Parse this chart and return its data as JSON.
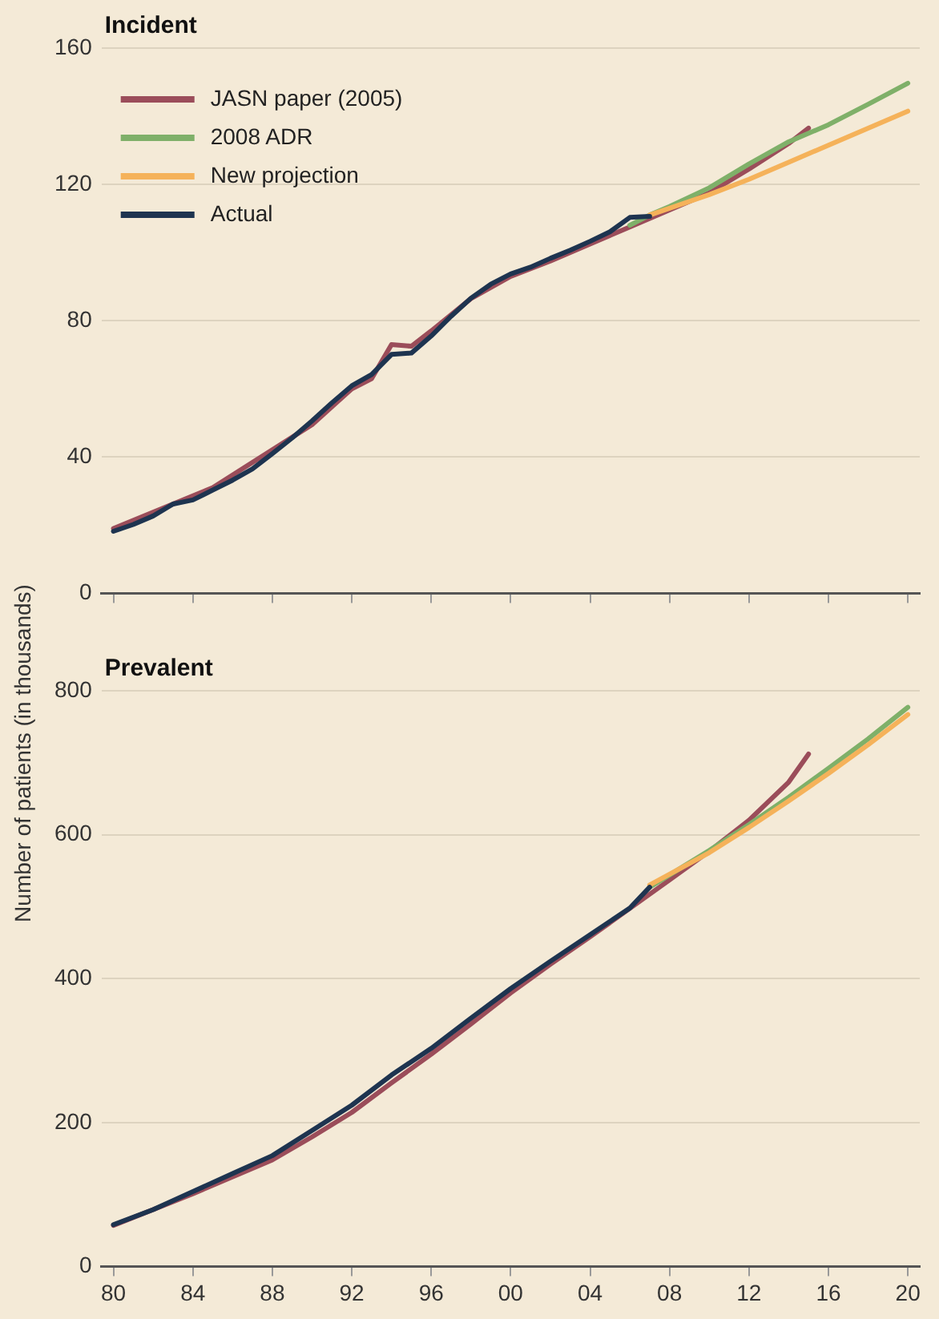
{
  "chart_data": [
    {
      "type": "line",
      "title": "Incident",
      "ylabel": "Number of patients (in thousands)",
      "xlim": [
        1979.4,
        2020.6
      ],
      "xticks": [
        {
          "value": 1980,
          "label": null
        },
        {
          "value": 1984,
          "label": null
        },
        {
          "value": 1988,
          "label": null
        },
        {
          "value": 1992,
          "label": null
        },
        {
          "value": 1996,
          "label": null
        },
        {
          "value": 2000,
          "label": null
        },
        {
          "value": 2004,
          "label": null
        },
        {
          "value": 2008,
          "label": null
        },
        {
          "value": 2012,
          "label": null
        },
        {
          "value": 2016,
          "label": null
        },
        {
          "value": 2020,
          "label": null
        }
      ],
      "ylim": [
        0,
        160
      ],
      "yticks": [
        0,
        40,
        80,
        120,
        160
      ],
      "grid": "y",
      "legend": "top left",
      "tick_labels": "y",
      "series": [
        {
          "name": "JASN paper (2005)",
          "color": "#9b4d5a",
          "x": [
            1980,
            1985,
            1990,
            1992,
            1993,
            1994,
            1995,
            1996,
            1998,
            2000,
            2002,
            2004,
            2006,
            2008,
            2010,
            2012,
            2014,
            2015
          ],
          "values": [
            19,
            31,
            49.5,
            60,
            63,
            73,
            72.5,
            77,
            86.5,
            93,
            97.5,
            102.5,
            107.5,
            112.5,
            117.5,
            124.5,
            132,
            136.5
          ]
        },
        {
          "name": "2008 ADR",
          "color": "#7fb069",
          "x": [
            2006,
            2007,
            2008,
            2010,
            2012,
            2014,
            2016,
            2018,
            2020
          ],
          "values": [
            108,
            111,
            113.5,
            119,
            126,
            132.5,
            137.5,
            143.5,
            149.7
          ]
        },
        {
          "name": "New projection",
          "color": "#f5b25a",
          "x": [
            2007,
            2008,
            2010,
            2012,
            2014,
            2016,
            2018,
            2020
          ],
          "values": [
            111,
            113,
            117,
            121.5,
            126.5,
            131.5,
            136.5,
            141.5
          ]
        },
        {
          "name": "Actual",
          "color": "#1e3450",
          "x": [
            1980,
            1981,
            1982,
            1983,
            1984,
            1985,
            1986,
            1987,
            1988,
            1989,
            1990,
            1991,
            1992,
            1993,
            1994,
            1995,
            1996,
            1997,
            1998,
            1999,
            2000,
            2001,
            2002,
            2003,
            2004,
            2005,
            2006,
            2007
          ],
          "values": [
            18.2,
            20.2,
            22.7,
            26.2,
            27.4,
            30.3,
            33.2,
            36.5,
            41,
            45.6,
            50.6,
            55.9,
            60.9,
            64.2,
            70.1,
            70.5,
            75.5,
            81.3,
            86.6,
            90.7,
            93.7,
            95.7,
            98.3,
            100.7,
            103.3,
            106.1,
            110.3,
            110.6
          ]
        }
      ]
    },
    {
      "type": "line",
      "title": "Prevalent",
      "xlim": [
        1979.4,
        2020.6
      ],
      "xticks": [
        {
          "value": 1980,
          "label": "80"
        },
        {
          "value": 1984,
          "label": "84"
        },
        {
          "value": 1988,
          "label": "88"
        },
        {
          "value": 1992,
          "label": "92"
        },
        {
          "value": 1996,
          "label": "96"
        },
        {
          "value": 2000,
          "label": "00"
        },
        {
          "value": 2004,
          "label": "04"
        },
        {
          "value": 2008,
          "label": "08"
        },
        {
          "value": 2012,
          "label": "12"
        },
        {
          "value": 2016,
          "label": "16"
        },
        {
          "value": 2020,
          "label": "20"
        }
      ],
      "ylim": [
        0,
        800
      ],
      "yticks": [
        0,
        200,
        400,
        600,
        800
      ],
      "grid": "y",
      "series": [
        {
          "color": "#9b4d5a",
          "x": [
            1980,
            1984,
            1988,
            1990,
            1992,
            1994,
            1996,
            1998,
            2000,
            2002,
            2004,
            2008,
            2010,
            2012,
            2014,
            2015
          ],
          "values": [
            57,
            101,
            148,
            180,
            214,
            255,
            295,
            337,
            380,
            420,
            458,
            537,
            577,
            620,
            673,
            712
          ]
        },
        {
          "color": "#7fb069",
          "x": [
            2007,
            2010,
            2012,
            2014,
            2016,
            2018,
            2020
          ],
          "values": [
            527,
            578,
            614,
            652,
            692,
            733,
            777
          ]
        },
        {
          "color": "#f5b25a",
          "x": [
            2007,
            2010,
            2012,
            2014,
            2016,
            2018,
            2020
          ],
          "values": [
            530,
            575,
            610,
            647,
            685,
            725,
            767
          ]
        },
        {
          "color": "#1e3450",
          "x": [
            1980,
            1982,
            1984,
            1986,
            1988,
            1990,
            1992,
            1994,
            1996,
            1998,
            2000,
            2002,
            2004,
            2006,
            2007
          ],
          "values": [
            58,
            79,
            104,
            129,
            154,
            189,
            224,
            266,
            303,
            345,
            386,
            424,
            461,
            498,
            527
          ]
        }
      ]
    }
  ]
}
